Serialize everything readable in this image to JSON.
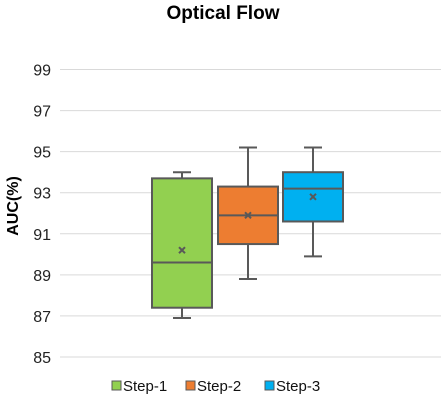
{
  "chart_data": {
    "type": "box",
    "title": "Optical Flow",
    "xlabel": "",
    "ylabel": "AUC(%)",
    "ylim": [
      85,
      100
    ],
    "yticks": [
      85,
      87,
      89,
      91,
      93,
      95,
      97,
      99
    ],
    "grid": true,
    "legend_position": "bottom",
    "series": [
      {
        "name": "Step-1",
        "color": "#92d050",
        "min": 86.9,
        "q1": 87.4,
        "median": 89.6,
        "q3": 93.7,
        "max": 94.0,
        "mean": 90.2
      },
      {
        "name": "Step-2",
        "color": "#ed7d31",
        "min": 88.8,
        "q1": 90.5,
        "median": 91.9,
        "q3": 93.3,
        "max": 95.2,
        "mean": 91.9
      },
      {
        "name": "Step-3",
        "color": "#00b0f0",
        "min": 89.9,
        "q1": 91.6,
        "median": 93.2,
        "q3": 94.0,
        "max": 95.2,
        "mean": 92.8
      }
    ]
  }
}
